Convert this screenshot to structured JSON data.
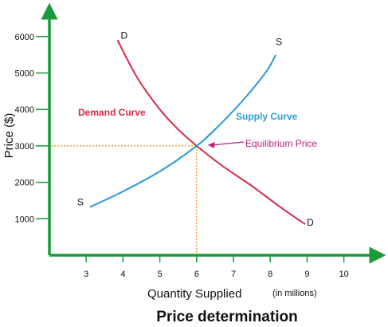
{
  "chart_data": {
    "type": "line",
    "title": "Price determination",
    "xlabel": "Quantity Supplied",
    "xunit": "(in millions)",
    "ylabel": "Price ($)",
    "xlim": [
      2,
      10.7
    ],
    "ylim": [
      0,
      6300
    ],
    "x_ticks": [
      3,
      4,
      5,
      6,
      7,
      8,
      9,
      10
    ],
    "y_ticks": [
      1000,
      2000,
      3000,
      4000,
      5000,
      6000
    ],
    "grid": false,
    "colors": {
      "axes": "#1a9a3a",
      "demand": "#d42a4a",
      "supply": "#2a9ad6",
      "guides": "#e08a10",
      "annotation": "#c0207a"
    },
    "series": [
      {
        "name": "Demand Curve",
        "start_label": "D",
        "end_label": "D",
        "points": [
          [
            3.85,
            5900
          ],
          [
            4.4,
            4850
          ],
          [
            5.0,
            4000
          ],
          [
            5.5,
            3450
          ],
          [
            6.0,
            3000
          ],
          [
            6.7,
            2450
          ],
          [
            7.5,
            1900
          ],
          [
            8.3,
            1300
          ],
          [
            8.95,
            850
          ]
        ]
      },
      {
        "name": "Supply Curve",
        "start_label": "S",
        "end_label": "S",
        "points": [
          [
            3.1,
            1320
          ],
          [
            4.0,
            1750
          ],
          [
            5.0,
            2300
          ],
          [
            6.0,
            3000
          ],
          [
            6.6,
            3550
          ],
          [
            7.3,
            4300
          ],
          [
            7.9,
            5050
          ],
          [
            8.15,
            5500
          ]
        ]
      }
    ],
    "equilibrium": {
      "x": 6,
      "y": 3000,
      "label": "Equilibrium Price"
    }
  }
}
